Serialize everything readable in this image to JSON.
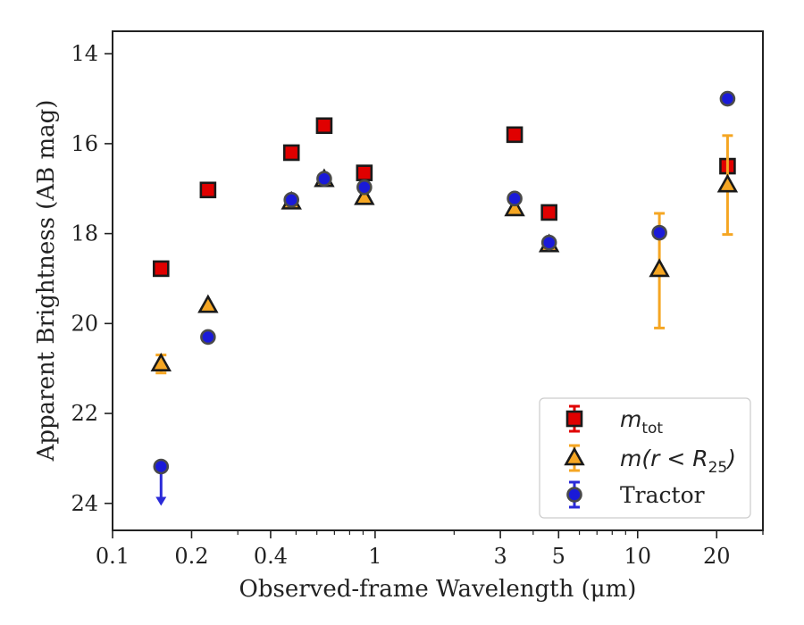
{
  "chart_data": {
    "type": "scatter",
    "xlabel": "Observed-frame Wavelength (μm)",
    "ylabel": "Apparent Brightness (AB mag)",
    "xscale": "log",
    "xlim": [
      0.1,
      30
    ],
    "ylim": [
      24.6,
      13.5
    ],
    "y_inverted": true,
    "xticks": [
      {
        "value": 0.1,
        "label": "0.1"
      },
      {
        "value": 0.2,
        "label": "0.2"
      },
      {
        "value": 0.4,
        "label": "0.4"
      },
      {
        "value": 1,
        "label": "1"
      },
      {
        "value": 3,
        "label": "3"
      },
      {
        "value": 5,
        "label": "5"
      },
      {
        "value": 10,
        "label": "10"
      },
      {
        "value": 20,
        "label": "20"
      }
    ],
    "yticks": [
      {
        "value": 14,
        "label": "14"
      },
      {
        "value": 16,
        "label": "16"
      },
      {
        "value": 18,
        "label": "18"
      },
      {
        "value": 20,
        "label": "20"
      },
      {
        "value": 22,
        "label": "22"
      },
      {
        "value": 24,
        "label": "24"
      }
    ],
    "grid": false,
    "legend_position": "lower-right",
    "series": [
      {
        "key": "mtot",
        "legend": {
          "main": "m",
          "sub": "tot",
          "tail": ""
        },
        "marker": "square",
        "fill": "#e00000",
        "edge": "#1a1a1a",
        "errcolor": "#e00000",
        "points": [
          {
            "x": 0.153,
            "y": 18.78
          },
          {
            "x": 0.231,
            "y": 17.03
          },
          {
            "x": 0.48,
            "y": 16.2
          },
          {
            "x": 0.64,
            "y": 15.6
          },
          {
            "x": 0.91,
            "y": 16.65
          },
          {
            "x": 3.4,
            "y": 15.8
          },
          {
            "x": 4.6,
            "y": 17.53
          },
          {
            "x": 22,
            "y": 16.5
          }
        ]
      },
      {
        "key": "mr25",
        "legend": {
          "main": "m",
          "sub": "25",
          "tail": "(r < R"
        },
        "legend_text": "m(r < R25)",
        "marker": "triangle",
        "fill": "#f5a623",
        "edge": "#1a1a1a",
        "errcolor": "#f5a623",
        "points": [
          {
            "x": 0.153,
            "y": 20.9,
            "err": 0.2
          },
          {
            "x": 0.231,
            "y": 19.6
          },
          {
            "x": 0.48,
            "y": 17.3
          },
          {
            "x": 0.64,
            "y": 16.8
          },
          {
            "x": 0.91,
            "y": 17.2
          },
          {
            "x": 3.4,
            "y": 17.45
          },
          {
            "x": 4.6,
            "y": 18.25
          },
          {
            "x": 12.1,
            "y": 18.8,
            "err_low": 1.25,
            "err_high": 1.3
          },
          {
            "x": 22,
            "y": 16.92,
            "err_low": 1.1,
            "err_high": 1.1
          }
        ]
      },
      {
        "key": "tractor",
        "legend": {
          "main": "Tractor",
          "sub": "",
          "tail": ""
        },
        "marker": "circle",
        "fill": "#1a1ad8",
        "edge": "#4a4a4a",
        "errcolor": "#2a2ad8",
        "points": [
          {
            "x": 0.153,
            "y": 23.18,
            "upper_limit": true
          },
          {
            "x": 0.231,
            "y": 20.3
          },
          {
            "x": 0.48,
            "y": 17.25
          },
          {
            "x": 0.64,
            "y": 16.78
          },
          {
            "x": 0.91,
            "y": 16.97
          },
          {
            "x": 3.4,
            "y": 17.22
          },
          {
            "x": 4.6,
            "y": 18.2
          },
          {
            "x": 12.1,
            "y": 17.98
          },
          {
            "x": 22,
            "y": 15.0
          }
        ]
      }
    ]
  },
  "legend_labels": {
    "mtot_main": "m",
    "mtot_sub": "tot",
    "mr25_pre": "m(r < R",
    "mr25_sub": "25",
    "mr25_post": ")",
    "tractor": "Tractor"
  }
}
